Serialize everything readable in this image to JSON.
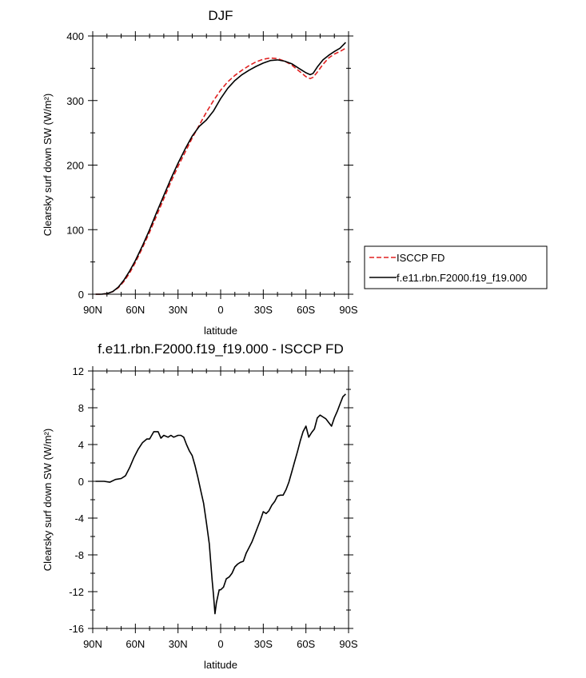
{
  "chart_data": [
    {
      "type": "line",
      "title": "DJF",
      "xlabel": "latitude",
      "ylabel": "Clearsky surf down SW (W/m²)",
      "xlim": [
        90,
        -90
      ],
      "ylim": [
        0,
        400
      ],
      "x_tick_values": [
        90,
        60,
        30,
        0,
        -30,
        -60,
        -90
      ],
      "x_tick_labels": [
        "90N",
        "60N",
        "30N",
        "0",
        "30S",
        "60S",
        "90S"
      ],
      "y_tick_values": [
        0,
        100,
        200,
        300,
        400
      ],
      "y_tick_labels": [
        "0",
        "100",
        "200",
        "300",
        "400"
      ],
      "legend_position": "right",
      "series": [
        {
          "name": "ISCCP FD",
          "color": "#e02020",
          "dash": "dashed",
          "x": [
            88,
            84,
            80,
            76,
            72,
            68,
            64,
            60,
            55,
            50,
            45,
            40,
            35,
            30,
            25,
            20,
            15,
            10,
            5,
            0,
            -5,
            -10,
            -15,
            -20,
            -25,
            -30,
            -35,
            -40,
            -45,
            -50,
            -55,
            -60,
            -63,
            -65,
            -68,
            -72,
            -76,
            -80,
            -84,
            -88
          ],
          "y": [
            0,
            0,
            1,
            4,
            10,
            20,
            33,
            49,
            72,
            96,
            122,
            148,
            174,
            198,
            220,
            242,
            262,
            282,
            300,
            316,
            329,
            339,
            347,
            354,
            360,
            364,
            366,
            365,
            361,
            355,
            346,
            337,
            334,
            336,
            344,
            356,
            366,
            372,
            376,
            381
          ]
        },
        {
          "name": "f.e11.rbn.F2000.f19_f19.000",
          "color": "#000000",
          "dash": "solid",
          "x": [
            88,
            84,
            80,
            76,
            72,
            68,
            64,
            60,
            55,
            50,
            45,
            40,
            35,
            30,
            25,
            20,
            15,
            10,
            5,
            0,
            -5,
            -10,
            -15,
            -20,
            -25,
            -30,
            -35,
            -40,
            -45,
            -50,
            -55,
            -60,
            -63,
            -65,
            -68,
            -72,
            -76,
            -80,
            -84,
            -88
          ],
          "y": [
            0,
            0,
            1,
            4,
            11,
            22,
            36,
            52,
            75,
            100,
            127,
            153,
            179,
            203,
            225,
            245,
            260,
            270,
            284,
            303,
            319,
            331,
            340,
            347,
            353,
            358,
            362,
            363,
            361,
            357,
            350,
            343,
            340,
            342,
            352,
            363,
            370,
            376,
            381,
            390
          ]
        }
      ]
    },
    {
      "type": "line",
      "title": "f.e11.rbn.F2000.f19_f19.000 - ISCCP FD",
      "xlabel": "latitude",
      "ylabel": "Clearsky surf down SW (W/m²)",
      "xlim": [
        90,
        -90
      ],
      "ylim": [
        -16,
        12
      ],
      "x_tick_values": [
        90,
        60,
        30,
        0,
        -30,
        -60,
        -90
      ],
      "x_tick_labels": [
        "90N",
        "60N",
        "30N",
        "0",
        "30S",
        "60S",
        "90S"
      ],
      "y_tick_values": [
        -16,
        -12,
        -8,
        -4,
        0,
        4,
        8,
        12
      ],
      "y_tick_labels": [
        "-16",
        "-12",
        "-8",
        "-4",
        "0",
        "4",
        "8",
        "12"
      ],
      "series": [
        {
          "color": "#000000",
          "dash": "solid",
          "x": [
            88,
            86,
            82,
            78,
            74,
            70,
            67,
            64,
            61,
            58,
            55,
            52,
            50,
            47,
            44,
            42,
            40,
            37,
            35,
            33,
            30,
            28,
            26,
            24,
            22,
            20,
            18,
            16,
            14,
            12,
            10,
            8,
            7,
            6,
            5,
            4,
            3,
            1,
            0,
            -2,
            -4,
            -6,
            -8,
            -10,
            -12,
            -14,
            -16,
            -18,
            -20,
            -22,
            -24,
            -26,
            -28,
            -30,
            -32,
            -34,
            -36,
            -38,
            -40,
            -42,
            -44,
            -46,
            -48,
            -50,
            -52,
            -54,
            -56,
            -58,
            -60,
            -62,
            -64,
            -66,
            -68,
            -70,
            -72,
            -74,
            -76,
            -78,
            -80,
            -82,
            -84,
            -86,
            -88
          ],
          "y": [
            0.0,
            0.0,
            0.0,
            -0.1,
            0.2,
            0.3,
            0.6,
            1.5,
            2.6,
            3.5,
            4.2,
            4.6,
            4.6,
            5.4,
            5.4,
            4.7,
            5.0,
            4.8,
            5.0,
            4.8,
            5.0,
            5.0,
            4.8,
            4.0,
            3.3,
            2.8,
            1.7,
            0.4,
            -1.0,
            -2.4,
            -4.5,
            -6.8,
            -8.8,
            -10.7,
            -12.4,
            -14.4,
            -13.2,
            -11.8,
            -11.8,
            -11.5,
            -10.6,
            -10.4,
            -10.0,
            -9.3,
            -9.0,
            -8.8,
            -8.7,
            -7.8,
            -7.2,
            -6.6,
            -5.8,
            -5.0,
            -4.2,
            -3.3,
            -3.5,
            -3.2,
            -2.6,
            -2.2,
            -1.6,
            -1.5,
            -1.5,
            -0.9,
            -0.1,
            1.0,
            2.1,
            3.2,
            4.4,
            5.4,
            6.0,
            4.8,
            5.3,
            5.7,
            6.9,
            7.2,
            7.0,
            6.8,
            6.4,
            6.0,
            6.9,
            7.6,
            8.4,
            9.2,
            9.5
          ]
        }
      ]
    }
  ]
}
